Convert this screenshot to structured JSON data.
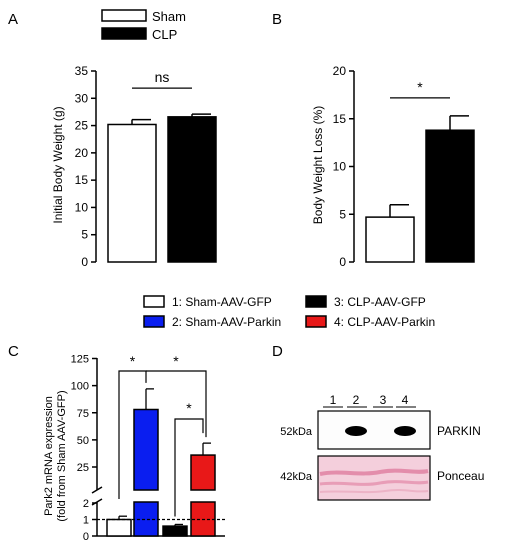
{
  "colors": {
    "white": "#ffffff",
    "black": "#000000",
    "blue": "#0a1ef0",
    "red": "#e81818",
    "blot_bg": "#fdfdfd",
    "ponceau_bg": "#f4cfdc",
    "ponceau_band": "#df7c9f"
  },
  "panel_labels": {
    "a": "A",
    "b": "B",
    "c": "C",
    "d": "D"
  },
  "legend_ab": [
    {
      "label": "Sham",
      "color": "#ffffff"
    },
    {
      "label": "CLP",
      "color": "#000000"
    }
  ],
  "legend_cd": [
    {
      "label": "1: Sham-AAV-GFP",
      "color": "#ffffff"
    },
    {
      "label": "3: CLP-AAV-GFP",
      "color": "#000000"
    },
    {
      "label": "2: Sham-AAV-Parkin",
      "color": "#0a1ef0"
    },
    {
      "label": "4: CLP-AAV-Parkin",
      "color": "#e81818"
    }
  ],
  "chart_data": [
    {
      "panel": "A",
      "type": "bar",
      "ylabel": "Initial Body Weight (g)",
      "ylim": [
        0,
        35
      ],
      "yticks": [
        0,
        5,
        10,
        15,
        20,
        25,
        30,
        35
      ],
      "categories": [
        "Sham",
        "CLP"
      ],
      "values": [
        25.2,
        26.6
      ],
      "errors": [
        0.9,
        0.5
      ],
      "colors": [
        "#ffffff",
        "#000000"
      ],
      "significance": "ns"
    },
    {
      "panel": "B",
      "type": "bar",
      "ylabel": "Body Weight Loss (%)",
      "ylim": [
        0,
        20
      ],
      "yticks": [
        0,
        5,
        10,
        15,
        20
      ],
      "categories": [
        "Sham",
        "CLP"
      ],
      "values": [
        4.7,
        13.8
      ],
      "errors": [
        1.3,
        1.5
      ],
      "colors": [
        "#ffffff",
        "#000000"
      ],
      "significance": "*"
    },
    {
      "panel": "C",
      "type": "bar",
      "ylabel_lines": [
        "Park2 mRNA expression",
        "(fold from Sham AAV-GFP)"
      ],
      "axis_break": true,
      "yticks_low": [
        0,
        1,
        2
      ],
      "yticks_high": [
        25,
        50,
        75,
        100,
        125
      ],
      "reference_line": 1,
      "categories": [
        "1: Sham-AAV-GFP",
        "2: Sham-AAV-Parkin",
        "3: CLP-AAV-GFP",
        "4: CLP-AAV-Parkin"
      ],
      "values": [
        1.0,
        78,
        0.6,
        36
      ],
      "errors": [
        0.2,
        19,
        0.1,
        11
      ],
      "colors": [
        "#ffffff",
        "#0a1ef0",
        "#000000",
        "#e81818"
      ],
      "significance": [
        "*",
        "*",
        "*"
      ]
    }
  ],
  "blot": {
    "lanes": [
      "1",
      "2",
      "3",
      "4"
    ],
    "parkin": {
      "marker": "52kDa",
      "label": "PARKIN",
      "band_intensity": [
        0,
        1,
        0,
        1
      ]
    },
    "ponceau": {
      "marker": "42kDa",
      "label": "Ponceau"
    }
  }
}
